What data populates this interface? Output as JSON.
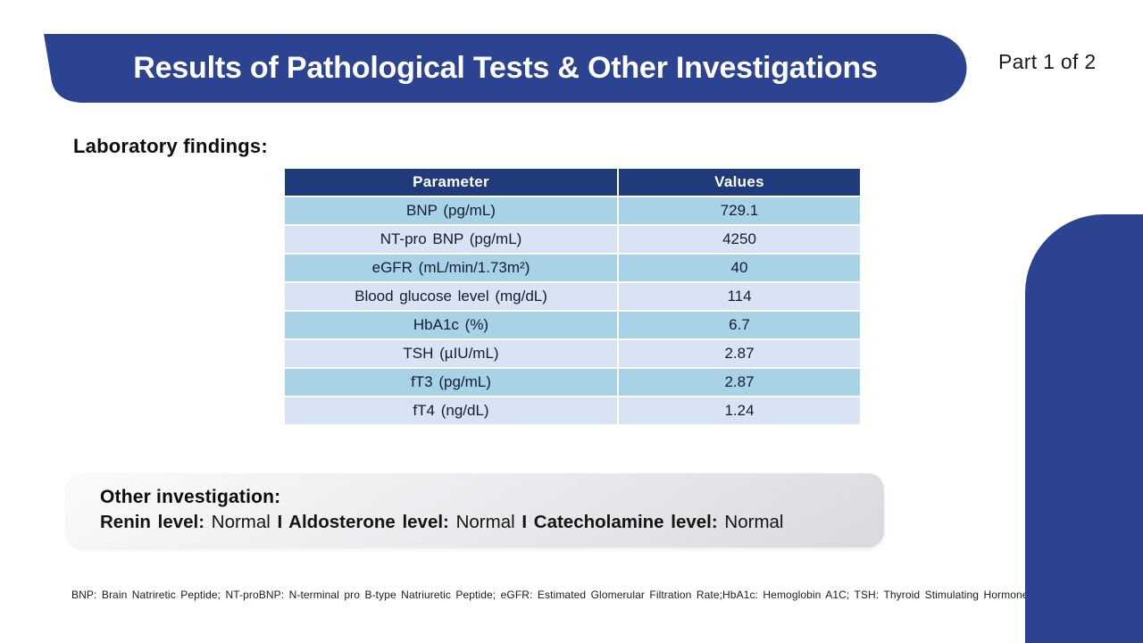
{
  "slide": {
    "title": "Results of Pathological Tests & Other Investigations",
    "part_label": "Part 1 of 2",
    "section_label": "Laboratory findings:",
    "footnote": "BNP: Brain Natriretic Peptide; NT-proBNP: N-terminal pro B-type Natriuretic Peptide; eGFR: Estimated Glomerular Filtration Rate;HbA1c: Hemoglobin A1C; TSH: Thyroid Stimulating Hormone"
  },
  "table": {
    "headers": [
      "Parameter",
      "Values"
    ],
    "rows": [
      [
        "BNP (pg/mL)",
        "729.1"
      ],
      [
        "NT-pro BNP (pg/mL)",
        "4250"
      ],
      [
        "eGFR (mL/min/1.73m²)",
        "40"
      ],
      [
        "Blood glucose level (mg/dL)",
        "114"
      ],
      [
        "HbA1c (%)",
        "6.7"
      ],
      [
        "TSH (µIU/mL)",
        "2.87"
      ],
      [
        "fT3 (pg/mL)",
        "2.87"
      ],
      [
        "fT4 (ng/dL)",
        "1.24"
      ]
    ]
  },
  "other_investigation": {
    "title": "Other investigation:",
    "segments": [
      {
        "text": "Renin level:",
        "bold": true
      },
      {
        "text": " Normal ",
        "bold": false
      },
      {
        "text": "I ",
        "bold": true
      },
      {
        "text": "Aldosterone level:",
        "bold": true
      },
      {
        "text": " Normal ",
        "bold": false
      },
      {
        "text": "I ",
        "bold": true
      },
      {
        "text": "Catecholamine level:",
        "bold": true
      },
      {
        "text": " Normal",
        "bold": false
      }
    ]
  },
  "colors": {
    "banner_blue": "#2b4390",
    "table_header_blue": "#1f3b7c",
    "row_blue_medium": "#a8d2e8",
    "row_blue_light": "#d8e4f4",
    "box_gray_start": "#fbfbfc",
    "box_gray_end": "#d9dade"
  }
}
